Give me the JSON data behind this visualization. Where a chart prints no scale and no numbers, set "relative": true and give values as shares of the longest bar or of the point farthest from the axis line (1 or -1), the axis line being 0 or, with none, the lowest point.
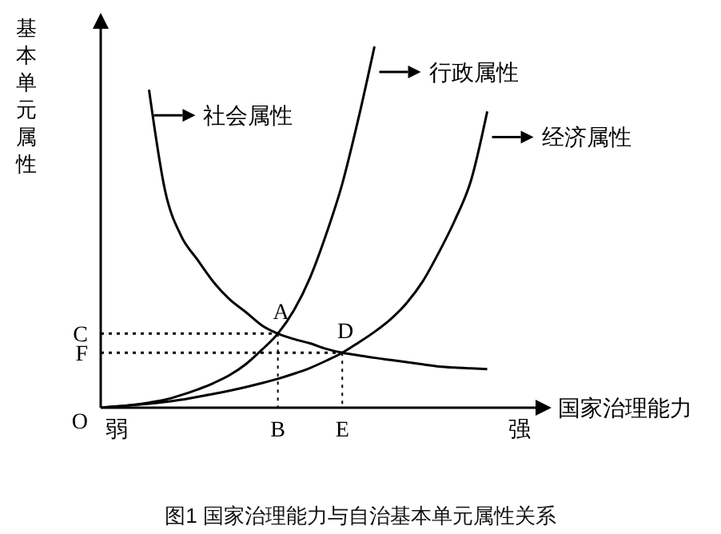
{
  "chart_data": {
    "type": "line",
    "title": "图1 国家治理能力与自治基本单元属性关系",
    "xlabel": "国家治理能力",
    "ylabel": "基本单元属性",
    "relative": true,
    "marker": "none",
    "categories": [
      null,
      "弱",
      null,
      null,
      null,
      null,
      null,
      null,
      null,
      null,
      null,
      "B",
      null,
      null,
      null,
      "E",
      null,
      null,
      null,
      null,
      null,
      null,
      null,
      null,
      null,
      null,
      "强",
      null
    ],
    "series": [
      {
        "name": "社会属性",
        "color": "#000000",
        "values": [
          null,
          null,
          null,
          0.88,
          0.6,
          0.475,
          0.41,
          0.348,
          0.3,
          0.265,
          0.228,
          0.205,
          0.19,
          0.178,
          0.163,
          0.152,
          0.145,
          0.138,
          0.132,
          0.126,
          0.12,
          0.114,
          0.111,
          0.109,
          0.107,
          null,
          null,
          null
        ]
      },
      {
        "name": "行政属性",
        "color": "#000000",
        "values": [
          0,
          0.004,
          0.008,
          0.014,
          0.022,
          0.035,
          0.05,
          0.068,
          0.09,
          0.12,
          0.16,
          0.205,
          0.27,
          0.36,
          0.48,
          0.62,
          0.8,
          1,
          null,
          null,
          null,
          null,
          null,
          null,
          null,
          null,
          null,
          null
        ]
      },
      {
        "name": "经济属性",
        "color": "#000000",
        "values": [
          0,
          0.003,
          0.007,
          0.011,
          0.016,
          0.022,
          0.03,
          0.038,
          0.047,
          0.057,
          0.068,
          0.08,
          0.094,
          0.11,
          0.13,
          0.152,
          0.18,
          0.21,
          0.245,
          0.29,
          0.35,
          0.43,
          0.52,
          0.63,
          0.82,
          null,
          null,
          null
        ]
      },
      {
        "name": "C",
        "color": "#000000",
        "line_style": "dotted",
        "values": [
          0.205,
          0.205,
          0.205,
          0.205,
          0.205,
          0.205,
          0.205,
          0.205,
          0.205,
          0.205,
          0.205,
          0.205,
          null,
          null,
          null,
          null,
          null,
          null,
          null,
          null,
          null,
          null,
          null,
          null,
          null,
          null,
          null,
          null
        ]
      },
      {
        "color": "#000000",
        "line_style": "dotted",
        "x": [
          "B",
          "B"
        ],
        "values": [
          0.205,
          0
        ]
      },
      {
        "name": "F",
        "color": "#000000",
        "line_style": "dotted",
        "values": [
          0.152,
          0.152,
          0.152,
          0.152,
          0.152,
          0.152,
          0.152,
          0.152,
          0.152,
          0.152,
          0.152,
          0.152,
          0.152,
          0.152,
          0.152,
          0.152,
          null,
          null,
          null,
          null,
          null,
          null,
          null,
          null,
          null,
          null,
          null,
          null
        ]
      },
      {
        "color": "#000000",
        "line_style": "dotted",
        "x": [
          "E",
          "E"
        ],
        "values": [
          0.152,
          0
        ]
      }
    ],
    "legend": "top",
    "annotations": [
      {
        "text": "A",
        "x": "B",
        "y": 0.205
      },
      {
        "text": "D",
        "x": "E",
        "y": 0.152
      },
      "O"
    ]
  }
}
